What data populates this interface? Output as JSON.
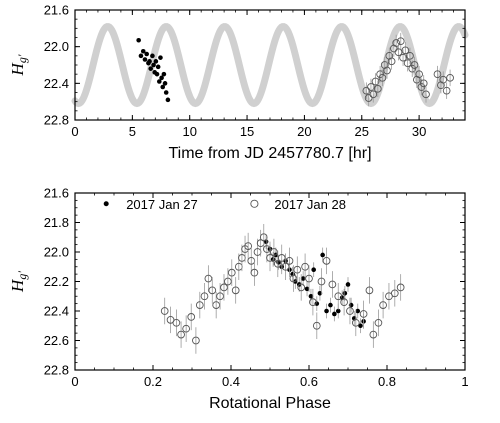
{
  "chart_data": [
    {
      "id": "top",
      "type": "scatter",
      "xlabel": "Time from JD 2457780.7 [hr]",
      "ylabel_main": "H",
      "ylabel_sub": "g′",
      "xlim": [
        0,
        34
      ],
      "ylim": [
        22.8,
        21.6
      ],
      "y_inverted": true,
      "xticks": [
        0,
        5,
        10,
        15,
        20,
        25,
        30
      ],
      "yticks": [
        "21.6",
        "22.0",
        "22.4",
        "22.8"
      ],
      "model_curve": {
        "color": "#d0d0d0",
        "mean": 22.2,
        "amplitude": 0.42,
        "period_hr": 5.1,
        "phase_hr": 0.3,
        "x_range": [
          0,
          34
        ]
      },
      "series": [
        {
          "marker": "filled-circle",
          "color": "#000000",
          "points": [
            [
              5.55,
              21.93
            ],
            [
              5.75,
              22.1
            ],
            [
              5.95,
              22.05
            ],
            [
              6.1,
              22.14
            ],
            [
              6.25,
              22.08
            ],
            [
              6.4,
              22.18
            ],
            [
              6.5,
              22.16
            ],
            [
              6.6,
              22.24
            ],
            [
              6.75,
              22.1
            ],
            [
              6.85,
              22.2
            ],
            [
              6.95,
              22.28
            ],
            [
              7.05,
              22.16
            ],
            [
              7.15,
              22.3
            ],
            [
              7.25,
              22.22
            ],
            [
              7.35,
              22.38
            ],
            [
              7.45,
              22.12
            ],
            [
              7.55,
              22.34
            ],
            [
              7.65,
              22.44
            ],
            [
              7.75,
              22.3
            ],
            [
              7.85,
              22.4
            ],
            [
              7.95,
              22.5
            ],
            [
              8.1,
              22.58
            ]
          ]
        },
        {
          "marker": "open-circle",
          "color": "#555555",
          "points": [
            [
              25.4,
              22.48
            ],
            [
              25.6,
              22.56
            ],
            [
              25.8,
              22.44
            ],
            [
              26.0,
              22.52
            ],
            [
              26.2,
              22.38
            ],
            [
              26.4,
              22.46
            ],
            [
              26.6,
              22.3
            ],
            [
              26.8,
              22.34
            ],
            [
              27.0,
              22.2
            ],
            [
              27.2,
              22.26
            ],
            [
              27.4,
              22.1
            ],
            [
              27.6,
              22.16
            ],
            [
              27.8,
              22.02
            ],
            [
              28.0,
              21.96
            ],
            [
              28.2,
              22.06
            ],
            [
              28.4,
              21.94
            ],
            [
              28.6,
              22.12
            ],
            [
              28.8,
              22.04
            ],
            [
              29.0,
              22.18
            ],
            [
              29.2,
              22.1
            ],
            [
              29.4,
              22.24
            ],
            [
              29.6,
              22.2
            ],
            [
              29.8,
              22.36
            ],
            [
              30.0,
              22.3
            ],
            [
              30.2,
              22.44
            ],
            [
              30.4,
              22.4
            ],
            [
              30.6,
              22.52
            ],
            [
              31.6,
              22.3
            ],
            [
              31.9,
              22.42
            ],
            [
              32.1,
              22.36
            ],
            [
              32.4,
              22.48
            ],
            [
              32.7,
              22.34
            ]
          ],
          "err": 0.09
        }
      ]
    },
    {
      "id": "bottom",
      "type": "scatter",
      "xlabel": "Rotational Phase",
      "ylabel_main": "H",
      "ylabel_sub": "g′",
      "xlim": [
        0,
        1
      ],
      "ylim": [
        22.8,
        21.6
      ],
      "y_inverted": true,
      "xticks": [
        "0",
        "0.2",
        "0.4",
        "0.6",
        "0.8",
        "1"
      ],
      "yticks": [
        "21.6",
        "21.8",
        "22.0",
        "22.2",
        "22.4",
        "22.6",
        "22.8"
      ],
      "legend": [
        {
          "label": "2017 Jan 27",
          "marker": "filled-circle"
        },
        {
          "label": "2017 Jan 28",
          "marker": "open-circle"
        }
      ],
      "legend_position": "top-left",
      "series": [
        {
          "name": "2017 Jan 27",
          "marker": "filled-circle",
          "color": "#000000",
          "err": 0.05,
          "points": [
            [
              0.49,
              21.93
            ],
            [
              0.5,
              21.98
            ],
            [
              0.508,
              22.05
            ],
            [
              0.515,
              22.02
            ],
            [
              0.522,
              22.07
            ],
            [
              0.53,
              22.1
            ],
            [
              0.54,
              22.06
            ],
            [
              0.55,
              22.12
            ],
            [
              0.558,
              22.15
            ],
            [
              0.565,
              22.2
            ],
            [
              0.575,
              22.22
            ],
            [
              0.585,
              22.18
            ],
            [
              0.595,
              22.25
            ],
            [
              0.605,
              22.3
            ],
            [
              0.612,
              22.12
            ],
            [
              0.62,
              22.35
            ],
            [
              0.628,
              22.28
            ],
            [
              0.635,
              22.02
            ],
            [
              0.645,
              22.4
            ],
            [
              0.655,
              22.36
            ],
            [
              0.665,
              22.42
            ],
            [
              0.675,
              22.4
            ],
            [
              0.685,
              22.31
            ],
            [
              0.692,
              22.28
            ],
            [
              0.7,
              22.22
            ],
            [
              0.708,
              22.36
            ],
            [
              0.716,
              22.45
            ],
            [
              0.725,
              22.4
            ],
            [
              0.732,
              22.5
            ],
            [
              0.74,
              22.47
            ]
          ]
        },
        {
          "name": "2017 Jan 28",
          "marker": "open-circle",
          "color": "#555555",
          "err": 0.09,
          "points": [
            [
              0.23,
              22.4
            ],
            [
              0.245,
              22.46
            ],
            [
              0.26,
              22.48
            ],
            [
              0.272,
              22.56
            ],
            [
              0.285,
              22.52
            ],
            [
              0.298,
              22.44
            ],
            [
              0.31,
              22.6
            ],
            [
              0.32,
              22.36
            ],
            [
              0.332,
              22.3
            ],
            [
              0.342,
              22.18
            ],
            [
              0.352,
              22.26
            ],
            [
              0.362,
              22.36
            ],
            [
              0.372,
              22.3
            ],
            [
              0.382,
              22.24
            ],
            [
              0.392,
              22.2
            ],
            [
              0.402,
              22.14
            ],
            [
              0.412,
              22.26
            ],
            [
              0.42,
              22.1
            ],
            [
              0.428,
              22.04
            ],
            [
              0.436,
              21.98
            ],
            [
              0.444,
              21.96
            ],
            [
              0.452,
              22.06
            ],
            [
              0.46,
              22.14
            ],
            [
              0.468,
              22.0
            ],
            [
              0.476,
              21.94
            ],
            [
              0.484,
              21.9
            ],
            [
              0.492,
              21.98
            ],
            [
              0.5,
              22.04
            ],
            [
              0.51,
              22.0
            ],
            [
              0.52,
              22.08
            ],
            [
              0.53,
              22.04
            ],
            [
              0.54,
              22.1
            ],
            [
              0.55,
              22.06
            ],
            [
              0.56,
              22.18
            ],
            [
              0.57,
              22.12
            ],
            [
              0.58,
              22.24
            ],
            [
              0.59,
              22.1
            ],
            [
              0.6,
              22.18
            ],
            [
              0.61,
              22.34
            ],
            [
              0.62,
              22.5
            ],
            [
              0.632,
              22.2
            ],
            [
              0.645,
              22.06
            ],
            [
              0.66,
              22.22
            ],
            [
              0.675,
              22.3
            ],
            [
              0.69,
              22.34
            ],
            [
              0.705,
              22.4
            ],
            [
              0.72,
              22.48
            ],
            [
              0.74,
              22.42
            ],
            [
              0.755,
              22.26
            ],
            [
              0.765,
              22.56
            ],
            [
              0.778,
              22.48
            ],
            [
              0.79,
              22.36
            ],
            [
              0.805,
              22.3
            ],
            [
              0.82,
              22.28
            ],
            [
              0.835,
              22.24
            ]
          ]
        }
      ]
    }
  ]
}
